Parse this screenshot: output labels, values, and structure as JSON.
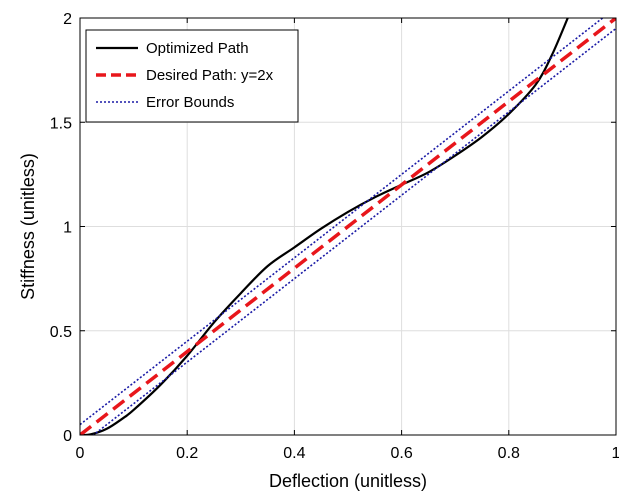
{
  "chart_data": {
    "type": "line",
    "xlabel": "Deflection (unitless)",
    "ylabel": "Stiffness (unitless)",
    "xlim": [
      0,
      1
    ],
    "ylim": [
      0,
      2
    ],
    "xticks": [
      0,
      0.2,
      0.4,
      0.6,
      0.8,
      1
    ],
    "yticks": [
      0,
      0.5,
      1,
      1.5,
      2
    ],
    "xtick_labels": [
      "0",
      "0.2",
      "0.4",
      "0.6",
      "0.8",
      "1"
    ],
    "ytick_labels": [
      "0",
      "0.5",
      "1",
      "1.5",
      "2"
    ],
    "grid": true,
    "legend_position": "top-left",
    "series": [
      {
        "name": "Optimized Path",
        "color": "#000000",
        "style": "solid",
        "x": [
          0,
          0.02,
          0.05,
          0.08,
          0.1,
          0.15,
          0.2,
          0.25,
          0.3,
          0.35,
          0.4,
          0.45,
          0.5,
          0.55,
          0.6,
          0.65,
          0.7,
          0.75,
          0.8,
          0.85,
          0.88,
          0.91
        ],
        "y": [
          0,
          0.003,
          0.03,
          0.08,
          0.12,
          0.24,
          0.38,
          0.54,
          0.68,
          0.81,
          0.9,
          0.99,
          1.07,
          1.14,
          1.2,
          1.26,
          1.34,
          1.43,
          1.54,
          1.68,
          1.82,
          2.0
        ]
      },
      {
        "name": "Desired Path: y=2x",
        "color": "#e8161b",
        "style": "dashed",
        "x": [
          0,
          1
        ],
        "y": [
          0,
          2
        ]
      },
      {
        "name": "Error Bounds",
        "color": "#1a1aa6",
        "style": "dotted",
        "x": [
          0,
          1
        ],
        "y": [
          0.05,
          2.05
        ]
      },
      {
        "name": "",
        "color": "#1a1aa6",
        "style": "dotted",
        "x": [
          0,
          1
        ],
        "y": [
          -0.05,
          1.95
        ]
      }
    ],
    "legend": [
      {
        "label": "Optimized Path",
        "color": "#000000",
        "style": "solid"
      },
      {
        "label": "Desired Path: y=2x",
        "color": "#e8161b",
        "style": "dashed"
      },
      {
        "label": "Error Bounds",
        "color": "#1a1aa6",
        "style": "dotted"
      }
    ]
  }
}
